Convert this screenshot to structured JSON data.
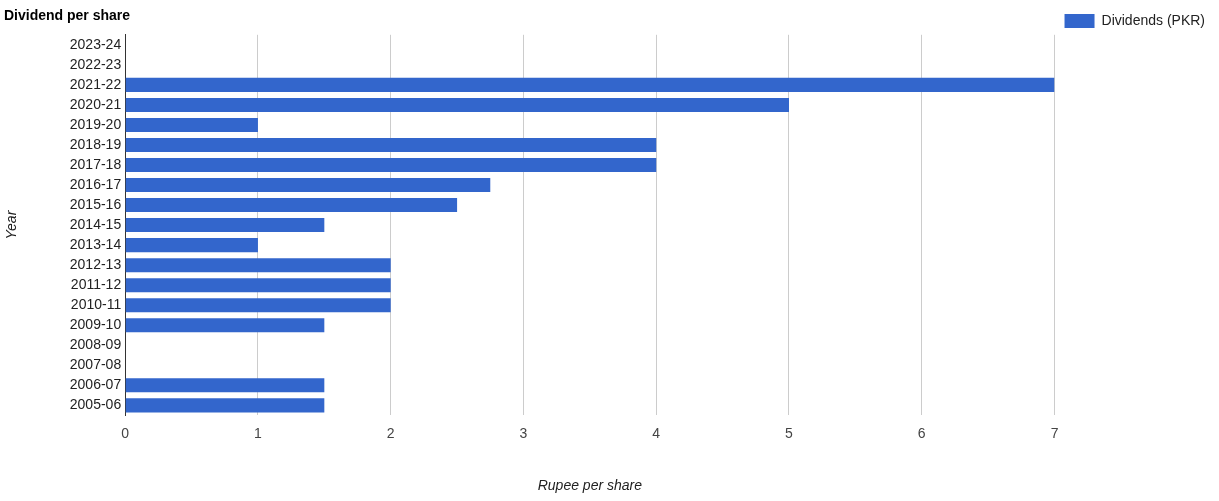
{
  "chart_data": {
    "type": "bar",
    "title": "Dividend per share",
    "orientation": "horizontal",
    "x_label": "Rupee per share",
    "y_label": "Year",
    "categories": [
      "2023-24",
      "2022-23",
      "2021-22",
      "2020-21",
      "2019-20",
      "2018-19",
      "2017-18",
      "2016-17",
      "2015-16",
      "2014-15",
      "2013-14",
      "2012-13",
      "2011-12",
      "2010-11",
      "2009-10",
      "2008-09",
      "2007-08",
      "2006-07",
      "2005-06"
    ],
    "series": [
      {
        "name": "Dividends (PKR)",
        "color": "#3366cc",
        "values": [
          null,
          null,
          7,
          5,
          1,
          4,
          4,
          2.75,
          2.5,
          1.5,
          1,
          2,
          2,
          2,
          1.5,
          null,
          null,
          1.5,
          1.5
        ]
      }
    ],
    "xlim": [
      0,
      7
    ],
    "xticks": [
      0,
      1,
      2,
      3,
      4,
      5,
      6,
      7
    ],
    "grid": true,
    "legend": "top-right"
  }
}
